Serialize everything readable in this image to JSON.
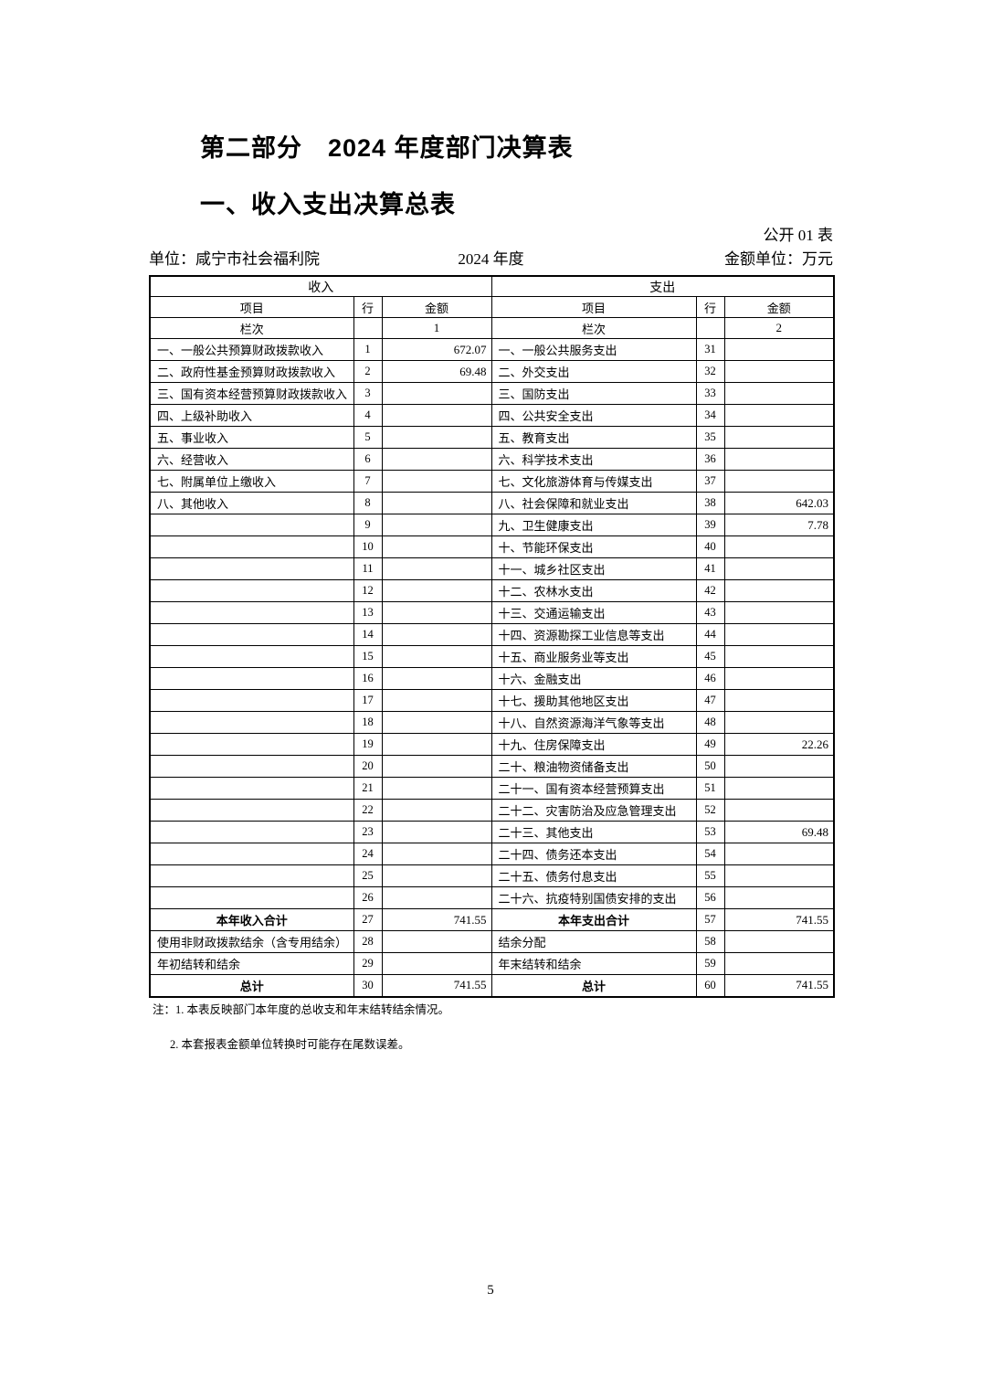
{
  "page": {
    "part_title": "第二部分　2024 年度部门决算表",
    "table_title": "一、收入支出决算总表",
    "table_code": "公开 01 表",
    "unit_label": "单位：咸宁市社会福利院",
    "year_label": "2024 年度",
    "amount_unit_label": "金额单位：万元",
    "page_number": "5"
  },
  "table": {
    "income_header": "收入",
    "expense_header": "支出",
    "col_item": "项目",
    "col_row": "行",
    "col_amount": "金额",
    "lanci_label": "栏次",
    "income_lanci": "1",
    "expense_lanci": "2",
    "rows": [
      {
        "in_item": "一、一般公共预算财政拨款收入",
        "in_row": "1",
        "in_amt": "672.07",
        "ex_item": "一、一般公共服务支出",
        "ex_row": "31",
        "ex_amt": "",
        "bold": false
      },
      {
        "in_item": "二、政府性基金预算财政拨款收入",
        "in_row": "2",
        "in_amt": "69.48",
        "ex_item": "二、外交支出",
        "ex_row": "32",
        "ex_amt": "",
        "bold": false
      },
      {
        "in_item": "三、国有资本经营预算财政拨款收入",
        "in_row": "3",
        "in_amt": "",
        "ex_item": "三、国防支出",
        "ex_row": "33",
        "ex_amt": "",
        "bold": false
      },
      {
        "in_item": "四、上级补助收入",
        "in_row": "4",
        "in_amt": "",
        "ex_item": "四、公共安全支出",
        "ex_row": "34",
        "ex_amt": "",
        "bold": false
      },
      {
        "in_item": "五、事业收入",
        "in_row": "5",
        "in_amt": "",
        "ex_item": "五、教育支出",
        "ex_row": "35",
        "ex_amt": "",
        "bold": false
      },
      {
        "in_item": "六、经营收入",
        "in_row": "6",
        "in_amt": "",
        "ex_item": "六、科学技术支出",
        "ex_row": "36",
        "ex_amt": "",
        "bold": false
      },
      {
        "in_item": "七、附属单位上缴收入",
        "in_row": "7",
        "in_amt": "",
        "ex_item": "七、文化旅游体育与传媒支出",
        "ex_row": "37",
        "ex_amt": "",
        "bold": false
      },
      {
        "in_item": "八、其他收入",
        "in_row": "8",
        "in_amt": "",
        "ex_item": "八、社会保障和就业支出",
        "ex_row": "38",
        "ex_amt": "642.03",
        "bold": false
      },
      {
        "in_item": "",
        "in_row": "9",
        "in_amt": "",
        "ex_item": "九、卫生健康支出",
        "ex_row": "39",
        "ex_amt": "7.78",
        "bold": false
      },
      {
        "in_item": "",
        "in_row": "10",
        "in_amt": "",
        "ex_item": "十、节能环保支出",
        "ex_row": "40",
        "ex_amt": "",
        "bold": false
      },
      {
        "in_item": "",
        "in_row": "11",
        "in_amt": "",
        "ex_item": "十一、城乡社区支出",
        "ex_row": "41",
        "ex_amt": "",
        "bold": false
      },
      {
        "in_item": "",
        "in_row": "12",
        "in_amt": "",
        "ex_item": "十二、农林水支出",
        "ex_row": "42",
        "ex_amt": "",
        "bold": false
      },
      {
        "in_item": "",
        "in_row": "13",
        "in_amt": "",
        "ex_item": "十三、交通运输支出",
        "ex_row": "43",
        "ex_amt": "",
        "bold": false
      },
      {
        "in_item": "",
        "in_row": "14",
        "in_amt": "",
        "ex_item": "十四、资源勘探工业信息等支出",
        "ex_row": "44",
        "ex_amt": "",
        "bold": false
      },
      {
        "in_item": "",
        "in_row": "15",
        "in_amt": "",
        "ex_item": "十五、商业服务业等支出",
        "ex_row": "45",
        "ex_amt": "",
        "bold": false
      },
      {
        "in_item": "",
        "in_row": "16",
        "in_amt": "",
        "ex_item": "十六、金融支出",
        "ex_row": "46",
        "ex_amt": "",
        "bold": false
      },
      {
        "in_item": "",
        "in_row": "17",
        "in_amt": "",
        "ex_item": "十七、援助其他地区支出",
        "ex_row": "47",
        "ex_amt": "",
        "bold": false
      },
      {
        "in_item": "",
        "in_row": "18",
        "in_amt": "",
        "ex_item": "十八、自然资源海洋气象等支出",
        "ex_row": "48",
        "ex_amt": "",
        "bold": false
      },
      {
        "in_item": "",
        "in_row": "19",
        "in_amt": "",
        "ex_item": "十九、住房保障支出",
        "ex_row": "49",
        "ex_amt": "22.26",
        "bold": false
      },
      {
        "in_item": "",
        "in_row": "20",
        "in_amt": "",
        "ex_item": "二十、粮油物资储备支出",
        "ex_row": "50",
        "ex_amt": "",
        "bold": false
      },
      {
        "in_item": "",
        "in_row": "21",
        "in_amt": "",
        "ex_item": "二十一、国有资本经营预算支出",
        "ex_row": "51",
        "ex_amt": "",
        "bold": false
      },
      {
        "in_item": "",
        "in_row": "22",
        "in_amt": "",
        "ex_item": "二十二、灾害防治及应急管理支出",
        "ex_row": "52",
        "ex_amt": "",
        "bold": false
      },
      {
        "in_item": "",
        "in_row": "23",
        "in_amt": "",
        "ex_item": "二十三、其他支出",
        "ex_row": "53",
        "ex_amt": "69.48",
        "bold": false
      },
      {
        "in_item": "",
        "in_row": "24",
        "in_amt": "",
        "ex_item": "二十四、债务还本支出",
        "ex_row": "54",
        "ex_amt": "",
        "bold": false
      },
      {
        "in_item": "",
        "in_row": "25",
        "in_amt": "",
        "ex_item": "二十五、债务付息支出",
        "ex_row": "55",
        "ex_amt": "",
        "bold": false
      },
      {
        "in_item": "",
        "in_row": "26",
        "in_amt": "",
        "ex_item": "二十六、抗疫特别国债安排的支出",
        "ex_row": "56",
        "ex_amt": "",
        "bold": false
      },
      {
        "in_item": "本年收入合计",
        "in_row": "27",
        "in_amt": "741.55",
        "ex_item": "本年支出合计",
        "ex_row": "57",
        "ex_amt": "741.55",
        "bold": true
      },
      {
        "in_item": "使用非财政拨款结余（含专用结余）",
        "in_row": "28",
        "in_amt": "",
        "ex_item": "结余分配",
        "ex_row": "58",
        "ex_amt": "",
        "bold": false
      },
      {
        "in_item": "年初结转和结余",
        "in_row": "29",
        "in_amt": "",
        "ex_item": "年末结转和结余",
        "ex_row": "59",
        "ex_amt": "",
        "bold": false
      },
      {
        "in_item": "总计",
        "in_row": "30",
        "in_amt": "741.55",
        "ex_item": "总计",
        "ex_row": "60",
        "ex_amt": "741.55",
        "bold": true
      }
    ]
  },
  "notes": {
    "note1": "注：1. 本表反映部门本年度的总收支和年末结转结余情况。",
    "note2": "2. 本套报表金额单位转换时可能存在尾数误差。"
  }
}
